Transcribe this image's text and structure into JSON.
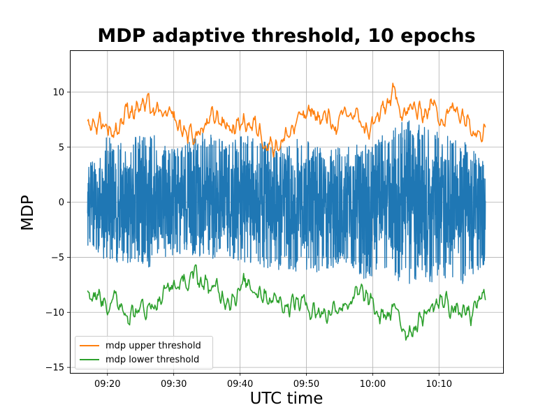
{
  "chart_data": {
    "type": "line",
    "title": "MDP adaptive threshold, 10 epochs",
    "xlabel": "UTC time",
    "ylabel": "MDP",
    "x_range": [
      "09:17",
      "10:17"
    ],
    "xlim": [
      "09:14:20",
      "10:19:40"
    ],
    "ylim": [
      -15.5,
      13.8
    ],
    "x_ticks": [
      "09:20",
      "09:30",
      "09:40",
      "09:50",
      "10:00",
      "10:10"
    ],
    "y_ticks": [
      10,
      5,
      0,
      -5,
      -10,
      -15
    ],
    "y_tick_labels": [
      "10",
      "5",
      "0",
      "−5",
      "−10",
      "−15"
    ],
    "grid": true,
    "legend_position": "lower left",
    "series": [
      {
        "key": "mdp",
        "color": "#1f77b4",
        "x": [
          "09:17",
          "09:20",
          "09:23",
          "09:26",
          "09:29",
          "09:32",
          "09:35",
          "09:38",
          "09:41",
          "09:44",
          "09:47",
          "09:50",
          "09:53",
          "09:56",
          "09:59",
          "10:02",
          "10:05",
          "10:08",
          "10:11",
          "10:14",
          "10:17"
        ],
        "upper": [
          3.5,
          6.0,
          5.5,
          6.8,
          5.0,
          5.5,
          6.5,
          5.5,
          6.2,
          5.5,
          5.0,
          6.5,
          4.5,
          5.5,
          5.2,
          6.5,
          7.5,
          6.8,
          6.2,
          5.5,
          3.5
        ],
        "lower": [
          -4.0,
          -5.5,
          -5.5,
          -6.0,
          -5.0,
          -4.5,
          -5.5,
          -5.0,
          -5.5,
          -6.0,
          -6.2,
          -6.5,
          -6.2,
          -5.5,
          -7.5,
          -6.5,
          -7.5,
          -7.5,
          -7.0,
          -7.5,
          -5.5
        ]
      },
      {
        "name": "mdp upper threshold",
        "color": "#ff7f0e",
        "x": [
          "09:17",
          "09:19",
          "09:21",
          "09:23",
          "09:25",
          "09:27",
          "09:29",
          "09:31",
          "09:33",
          "09:35",
          "09:37",
          "09:39",
          "09:41",
          "09:43",
          "09:45",
          "09:47",
          "09:49",
          "09:51",
          "09:53",
          "09:55",
          "09:57",
          "09:59",
          "10:01",
          "10:03",
          "10:05",
          "10:07",
          "10:09",
          "10:11",
          "10:13",
          "10:15",
          "10:17"
        ],
        "y": [
          7.0,
          7.5,
          6.5,
          8.5,
          9.0,
          8.0,
          7.5,
          6.5,
          6.0,
          7.0,
          7.5,
          6.8,
          7.5,
          6.5,
          5.5,
          6.0,
          7.5,
          8.0,
          7.5,
          7.0,
          8.0,
          6.5,
          7.5,
          9.5,
          8.5,
          8.0,
          9.0,
          8.0,
          8.5,
          7.5,
          7.5
        ]
      },
      {
        "name": "mdp lower threshold",
        "color": "#2ca02c",
        "x": [
          "09:17",
          "09:19",
          "09:21",
          "09:23",
          "09:25",
          "09:27",
          "09:29",
          "09:31",
          "09:33",
          "09:35",
          "09:37",
          "09:39",
          "09:41",
          "09:43",
          "09:45",
          "09:47",
          "09:49",
          "09:51",
          "09:53",
          "09:55",
          "09:57",
          "09:59",
          "10:01",
          "10:03",
          "10:05",
          "10:07",
          "10:09",
          "10:11",
          "10:13",
          "10:15",
          "10:17"
        ],
        "y": [
          -8.0,
          -8.5,
          -9.0,
          -9.5,
          -10.0,
          -9.0,
          -8.0,
          -7.5,
          -7.0,
          -7.5,
          -8.5,
          -8.0,
          -7.5,
          -7.5,
          -8.5,
          -9.0,
          -9.0,
          -9.5,
          -10.0,
          -9.0,
          -8.5,
          -9.0,
          -10.5,
          -10.0,
          -11.5,
          -10.5,
          -9.5,
          -9.0,
          -10.0,
          -10.5,
          -8.5
        ]
      }
    ]
  }
}
